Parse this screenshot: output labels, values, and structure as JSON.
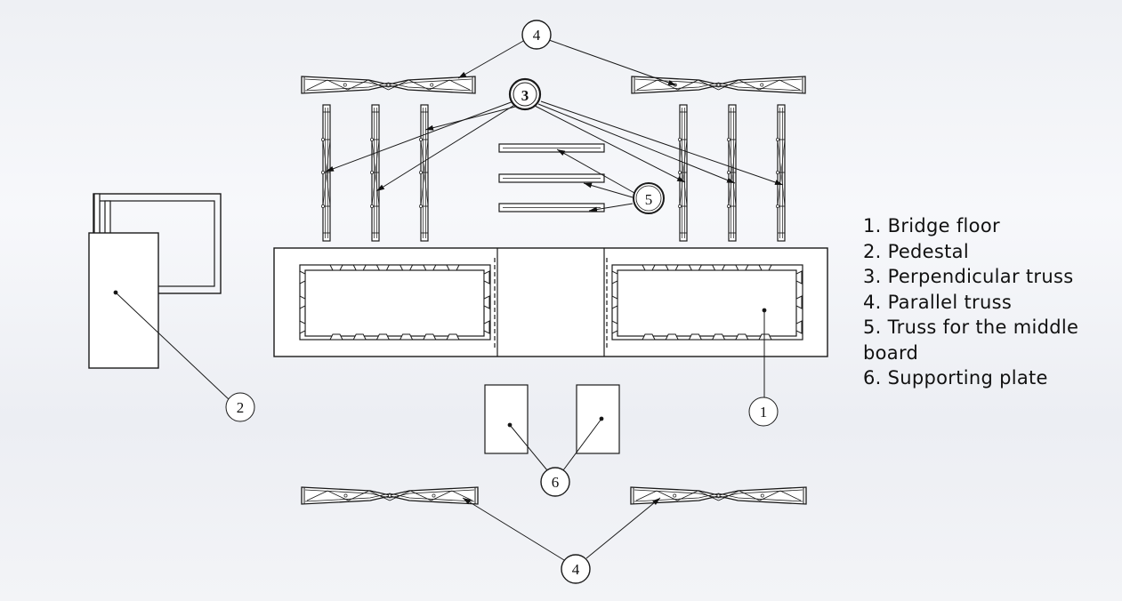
{
  "callouts": {
    "c4_top": "4",
    "c3": "3",
    "c5": "5",
    "c2": "2",
    "c1": "1",
    "c6": "6",
    "c4_bottom": "4"
  },
  "legend": {
    "items": [
      "1. Bridge floor",
      "2. Pedestal",
      "3. Perpendicular truss",
      "4. Parallel truss",
      "5. Truss for the middle board",
      "6. Supporting plate"
    ]
  },
  "colors": {
    "stroke": "#1a1a1a",
    "fill": "#ffffff"
  }
}
